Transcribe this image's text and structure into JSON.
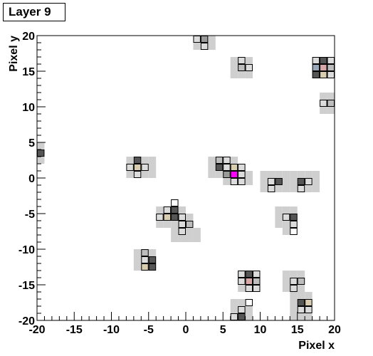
{
  "chart_data": {
    "type": "heatmap",
    "title": "Layer 9",
    "xlabel": "Pixel x",
    "ylabel": "Pixel y",
    "xlim": [
      -20,
      20
    ],
    "ylim": [
      -20,
      20
    ],
    "x_ticks": [
      -20,
      -15,
      -10,
      -5,
      0,
      5,
      10,
      15,
      20
    ],
    "y_ticks": [
      -20,
      -15,
      -10,
      -5,
      0,
      5,
      10,
      15,
      20
    ],
    "grid": false,
    "palette": {
      "shadow": "#cfcfcf",
      "empty": "#ffffff",
      "low": "#dcdcdc",
      "mid": "#bdbdbd",
      "midhigh": "#9a9a9a",
      "high": "#555555",
      "tan": "#d9cdb0",
      "pink": "#d8a8a8",
      "blue": "#98a8b8",
      "peak": "#ff00ff"
    },
    "shadow_cells": [
      [
        1,
        19
      ],
      [
        2,
        19
      ],
      [
        3,
        19
      ],
      [
        1,
        18
      ],
      [
        2,
        18
      ],
      [
        3,
        18
      ],
      [
        6,
        16
      ],
      [
        7,
        16
      ],
      [
        8,
        16
      ],
      [
        6,
        15
      ],
      [
        7,
        15
      ],
      [
        8,
        15
      ],
      [
        6,
        14
      ],
      [
        7,
        14
      ],
      [
        8,
        14
      ],
      [
        17,
        16
      ],
      [
        18,
        16
      ],
      [
        19,
        16
      ],
      [
        17,
        15
      ],
      [
        18,
        15
      ],
      [
        19,
        15
      ],
      [
        17,
        14
      ],
      [
        18,
        14
      ],
      [
        19,
        14
      ],
      [
        18,
        11
      ],
      [
        19,
        11
      ],
      [
        18,
        10
      ],
      [
        19,
        10
      ],
      [
        18,
        9
      ],
      [
        19,
        9
      ],
      [
        -20,
        4
      ],
      [
        -20,
        3
      ],
      [
        -20,
        2
      ],
      [
        -8,
        2
      ],
      [
        -7,
        2
      ],
      [
        -6,
        2
      ],
      [
        -5,
        2
      ],
      [
        -8,
        1
      ],
      [
        -7,
        1
      ],
      [
        -6,
        1
      ],
      [
        -5,
        1
      ],
      [
        -8,
        0
      ],
      [
        -7,
        0
      ],
      [
        -6,
        0
      ],
      [
        -5,
        0
      ],
      [
        3,
        2
      ],
      [
        4,
        2
      ],
      [
        5,
        2
      ],
      [
        6,
        2
      ],
      [
        3,
        1
      ],
      [
        4,
        1
      ],
      [
        5,
        1
      ],
      [
        6,
        1
      ],
      [
        7,
        1
      ],
      [
        3,
        0
      ],
      [
        4,
        0
      ],
      [
        5,
        0
      ],
      [
        6,
        0
      ],
      [
        7,
        0
      ],
      [
        8,
        0
      ],
      [
        5,
        -1
      ],
      [
        6,
        -1
      ],
      [
        7,
        -1
      ],
      [
        8,
        -1
      ],
      [
        10,
        0
      ],
      [
        11,
        0
      ],
      [
        12,
        0
      ],
      [
        13,
        0
      ],
      [
        14,
        0
      ],
      [
        15,
        0
      ],
      [
        16,
        0
      ],
      [
        17,
        0
      ],
      [
        10,
        -1
      ],
      [
        11,
        -1
      ],
      [
        12,
        -1
      ],
      [
        13,
        -1
      ],
      [
        14,
        -1
      ],
      [
        15,
        -1
      ],
      [
        16,
        -1
      ],
      [
        17,
        -1
      ],
      [
        10,
        -2
      ],
      [
        11,
        -2
      ],
      [
        12,
        -2
      ],
      [
        13,
        -2
      ],
      [
        14,
        -2
      ],
      [
        15,
        -2
      ],
      [
        16,
        -2
      ],
      [
        17,
        -2
      ],
      [
        -4,
        -5
      ],
      [
        -3,
        -5
      ],
      [
        -2,
        -5
      ],
      [
        -1,
        -5
      ],
      [
        -4,
        -6
      ],
      [
        -3,
        -6
      ],
      [
        -2,
        -6
      ],
      [
        -1,
        -6
      ],
      [
        0,
        -6
      ],
      [
        -4,
        -7
      ],
      [
        -3,
        -7
      ],
      [
        -2,
        -7
      ],
      [
        -1,
        -7
      ],
      [
        0,
        -7
      ],
      [
        -2,
        -8
      ],
      [
        -1,
        -8
      ],
      [
        0,
        -8
      ],
      [
        1,
        -8
      ],
      [
        -2,
        -9
      ],
      [
        -1,
        -9
      ],
      [
        0,
        -9
      ],
      [
        1,
        -9
      ],
      [
        12,
        -5
      ],
      [
        13,
        -5
      ],
      [
        14,
        -5
      ],
      [
        12,
        -6
      ],
      [
        13,
        -6
      ],
      [
        14,
        -6
      ],
      [
        12,
        -7
      ],
      [
        13,
        -7
      ],
      [
        14,
        -7
      ],
      [
        13,
        -8
      ],
      [
        14,
        -8
      ],
      [
        -7,
        -11
      ],
      [
        -6,
        -11
      ],
      [
        -5,
        -11
      ],
      [
        -7,
        -12
      ],
      [
        -6,
        -12
      ],
      [
        -5,
        -12
      ],
      [
        -7,
        -13
      ],
      [
        -6,
        -13
      ],
      [
        -5,
        -13
      ],
      [
        7,
        -14
      ],
      [
        8,
        -14
      ],
      [
        9,
        -14
      ],
      [
        7,
        -15
      ],
      [
        8,
        -15
      ],
      [
        9,
        -15
      ],
      [
        7,
        -16
      ],
      [
        8,
        -16
      ],
      [
        9,
        -16
      ],
      [
        13,
        -14
      ],
      [
        14,
        -14
      ],
      [
        15,
        -14
      ],
      [
        13,
        -15
      ],
      [
        14,
        -15
      ],
      [
        15,
        -15
      ],
      [
        13,
        -16
      ],
      [
        14,
        -16
      ],
      [
        15,
        -16
      ],
      [
        6,
        -18
      ],
      [
        7,
        -18
      ],
      [
        8,
        -18
      ],
      [
        6,
        -19
      ],
      [
        7,
        -19
      ],
      [
        8,
        -19
      ],
      [
        6,
        -20
      ],
      [
        7,
        -20
      ],
      [
        8,
        -20
      ],
      [
        14,
        -17
      ],
      [
        15,
        -17
      ],
      [
        16,
        -17
      ],
      [
        14,
        -18
      ],
      [
        15,
        -18
      ],
      [
        16,
        -18
      ],
      [
        14,
        -19
      ],
      [
        15,
        -19
      ],
      [
        16,
        -19
      ],
      [
        14,
        -20
      ],
      [
        15,
        -20
      ],
      [
        16,
        -20
      ]
    ],
    "pixels": [
      [
        1,
        19,
        "low"
      ],
      [
        2,
        19,
        "midhigh"
      ],
      [
        2,
        18,
        "low"
      ],
      [
        7,
        16,
        "low"
      ],
      [
        7,
        15,
        "mid"
      ],
      [
        8,
        15,
        "low"
      ],
      [
        18,
        16,
        "high"
      ],
      [
        17,
        16,
        "low"
      ],
      [
        19,
        16,
        "low"
      ],
      [
        18,
        15,
        "pink"
      ],
      [
        17,
        15,
        "blue"
      ],
      [
        19,
        15,
        "mid"
      ],
      [
        17,
        14,
        "high"
      ],
      [
        18,
        14,
        "tan"
      ],
      [
        19,
        14,
        "low"
      ],
      [
        18,
        10,
        "low"
      ],
      [
        19,
        10,
        "mid"
      ],
      [
        -20,
        3,
        "high"
      ],
      [
        -7,
        2,
        "high"
      ],
      [
        -8,
        1,
        "low"
      ],
      [
        -7,
        1,
        "tan"
      ],
      [
        -6,
        1,
        "low"
      ],
      [
        -7,
        0,
        "low"
      ],
      [
        4,
        2,
        "mid"
      ],
      [
        5,
        2,
        "low"
      ],
      [
        4,
        1,
        "high"
      ],
      [
        5,
        1,
        "low"
      ],
      [
        6,
        1,
        "tan"
      ],
      [
        7,
        1,
        "low"
      ],
      [
        5,
        0,
        "midhigh"
      ],
      [
        6,
        0,
        "peak"
      ],
      [
        7,
        0,
        "low"
      ],
      [
        6,
        -1,
        "low"
      ],
      [
        7,
        -1,
        "low"
      ],
      [
        11,
        -1,
        "low"
      ],
      [
        12,
        -1,
        "high"
      ],
      [
        11,
        -2,
        "low"
      ],
      [
        15,
        -1,
        "high"
      ],
      [
        16,
        -1,
        "low"
      ],
      [
        15,
        -2,
        "low"
      ],
      [
        -2,
        -4,
        "empty"
      ],
      [
        -3,
        -5,
        "low"
      ],
      [
        -2,
        -5,
        "high"
      ],
      [
        -4,
        -6,
        "low"
      ],
      [
        -3,
        -6,
        "tan"
      ],
      [
        -2,
        -6,
        "high"
      ],
      [
        -1,
        -6,
        "low"
      ],
      [
        0,
        -7,
        "mid"
      ],
      [
        -1,
        -7,
        "low"
      ],
      [
        -1,
        -8,
        "low"
      ],
      [
        13,
        -6,
        "low"
      ],
      [
        14,
        -6,
        "high"
      ],
      [
        14,
        -7,
        "low"
      ],
      [
        14,
        -8,
        "empty"
      ],
      [
        -6,
        -11,
        "mid"
      ],
      [
        -6,
        -12,
        "low"
      ],
      [
        -5,
        -12,
        "high"
      ],
      [
        -6,
        -13,
        "tan"
      ],
      [
        -5,
        -13,
        "high"
      ],
      [
        7,
        -14,
        "low"
      ],
      [
        8,
        -14,
        "high"
      ],
      [
        9,
        -14,
        "low"
      ],
      [
        8,
        -15,
        "pink"
      ],
      [
        9,
        -15,
        "mid"
      ],
      [
        7,
        -15,
        "low"
      ],
      [
        8,
        -16,
        "low"
      ],
      [
        9,
        -16,
        "low"
      ],
      [
        14,
        -15,
        "low"
      ],
      [
        15,
        -15,
        "mid"
      ],
      [
        14,
        -16,
        "low"
      ],
      [
        8,
        -18,
        "empty"
      ],
      [
        7,
        -19,
        "low"
      ],
      [
        6,
        -20,
        "low"
      ],
      [
        7,
        -20,
        "high"
      ],
      [
        15,
        -18,
        "high"
      ],
      [
        16,
        -18,
        "tan"
      ],
      [
        15,
        -19,
        "low"
      ],
      [
        16,
        -19,
        "low"
      ]
    ]
  }
}
